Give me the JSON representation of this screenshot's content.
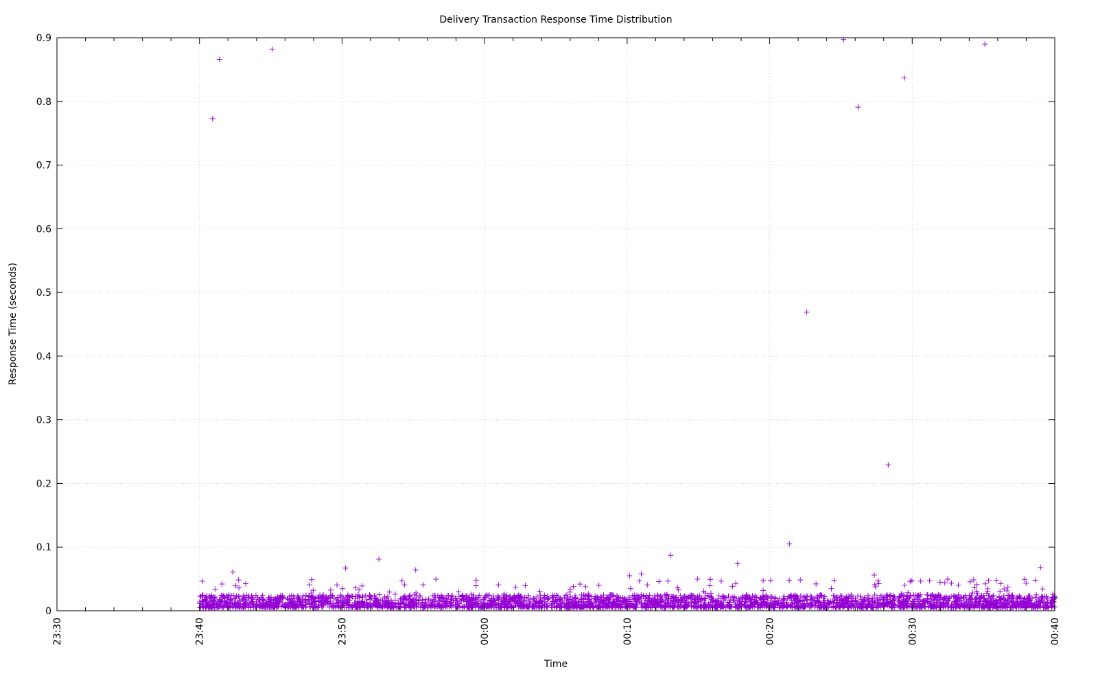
{
  "chart_data": {
    "type": "scatter",
    "title": "Delivery Transaction Response Time Distribution",
    "xlabel": "Time",
    "ylabel": "Response Time (seconds)",
    "xlim": [
      "23:30",
      "00:40"
    ],
    "ylim": [
      0,
      0.9
    ],
    "x_ticks": [
      "23:30",
      "23:40",
      "23:50",
      "00:00",
      "00:10",
      "00:20",
      "00:30",
      "00:40"
    ],
    "x_minor_tick_interval_minutes": 2,
    "y_ticks": [
      "0",
      "0.1",
      "0.2",
      "0.3",
      "0.4",
      "0.5",
      "0.6",
      "0.7",
      "0.8",
      "0.9"
    ],
    "grid": true,
    "legend": "none",
    "marker": "plus",
    "color": "#9400d3",
    "dense_band": {
      "x_range": [
        "23:40",
        "00:40"
      ],
      "y_range": [
        0.005,
        0.025
      ],
      "typical": 0.012,
      "occasional_up_to": 0.05
    },
    "points": [
      {
        "x": "23:40:55",
        "y": 0.773
      },
      {
        "x": "23:41:24",
        "y": 0.866
      },
      {
        "x": "23:45:06",
        "y": 0.882
      },
      {
        "x": "23:42:20",
        "y": 0.061
      },
      {
        "x": "23:50:15",
        "y": 0.067
      },
      {
        "x": "23:52:35",
        "y": 0.081
      },
      {
        "x": "23:55:10",
        "y": 0.064
      },
      {
        "x": "00:10:10",
        "y": 0.055
      },
      {
        "x": "00:11:00",
        "y": 0.058
      },
      {
        "x": "00:13:03",
        "y": 0.087
      },
      {
        "x": "00:17:45",
        "y": 0.074
      },
      {
        "x": "00:21:23",
        "y": 0.105
      },
      {
        "x": "00:22:36",
        "y": 0.469
      },
      {
        "x": "00:25:11",
        "y": 0.897
      },
      {
        "x": "00:26:12",
        "y": 0.791
      },
      {
        "x": "00:27:20",
        "y": 0.056
      },
      {
        "x": "00:28:19",
        "y": 0.229
      },
      {
        "x": "00:29:26",
        "y": 0.837
      },
      {
        "x": "00:35:06",
        "y": 0.89
      },
      {
        "x": "00:39:00",
        "y": 0.068
      }
    ]
  }
}
